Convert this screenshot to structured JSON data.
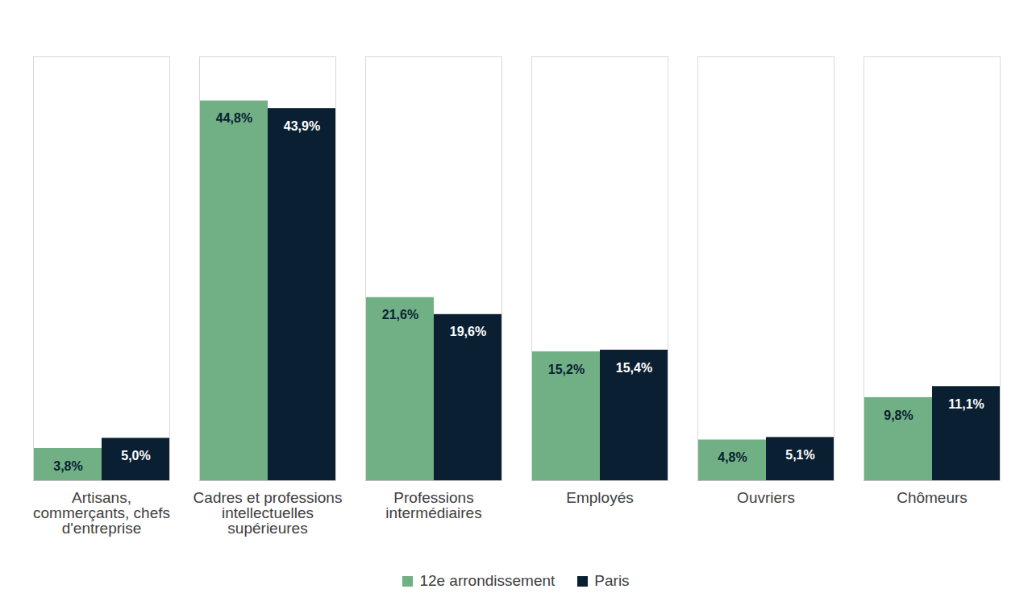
{
  "chart_data": {
    "type": "bar",
    "categories": [
      "Artisans, commerçants, chefs d'entreprise",
      "Cadres et professions intellectuelles supérieures",
      "Professions intermédiaires",
      "Employés",
      "Ouvriers",
      "Chômeurs"
    ],
    "series": [
      {
        "name": "12e arrondissement",
        "color": "#70b084",
        "values": [
          3.8,
          44.8,
          21.6,
          15.2,
          4.8,
          9.8
        ],
        "value_labels": [
          "3,8%",
          "44,8%",
          "21,6%",
          "15,2%",
          "4,8%",
          "9,8%"
        ]
      },
      {
        "name": "Paris",
        "color": "#0b1f33",
        "values": [
          5.0,
          43.9,
          19.6,
          15.4,
          5.1,
          11.1
        ],
        "value_labels": [
          "5,0%",
          "43,9%",
          "19,6%",
          "15,4%",
          "5,1%",
          "11,1%"
        ]
      }
    ],
    "ylim": [
      0,
      50
    ],
    "data_labels": true,
    "tick_labels": "x",
    "legend": "bottom"
  }
}
